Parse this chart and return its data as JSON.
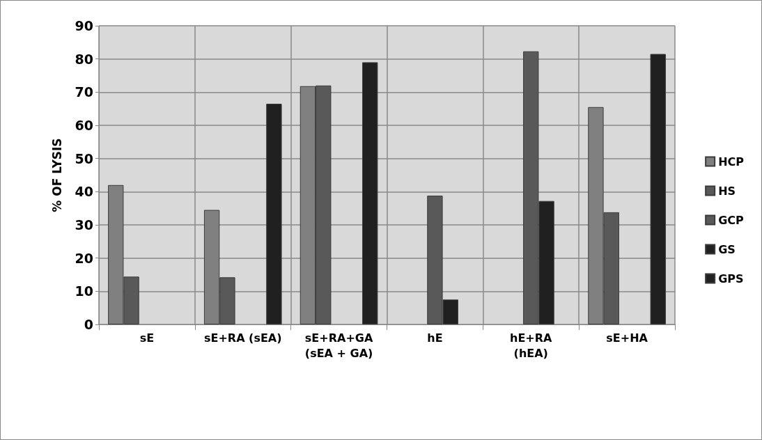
{
  "chart_data": {
    "type": "bar",
    "ylabel": "% OF LYSIS",
    "categories": [
      "sE",
      "sE+RA (sEA)",
      "sE+RA+GA\n(sEA + GA)",
      "hE",
      "hE+RA\n(hEA)",
      "sE+HA"
    ],
    "series": [
      {
        "name": "HCP",
        "color": "#808080",
        "values": [
          42,
          34.5,
          71.8,
          null,
          null,
          65.5
        ]
      },
      {
        "name": "HS",
        "color": "#595959",
        "values": [
          14.4,
          14.2,
          72,
          null,
          null,
          33.8
        ]
      },
      {
        "name": "GCP",
        "color": "#595959",
        "values": [
          null,
          null,
          null,
          38.8,
          82.3,
          null
        ]
      },
      {
        "name": "GS",
        "color": "#202020",
        "values": [
          null,
          null,
          null,
          7.5,
          37.2,
          null
        ]
      },
      {
        "name": "GPS",
        "color": "#202020",
        "values": [
          null,
          66.5,
          79,
          null,
          null,
          81.5
        ]
      }
    ],
    "ylim": [
      0,
      90
    ],
    "yticks": [
      0,
      10,
      20,
      30,
      40,
      50,
      60,
      70,
      80,
      90
    ],
    "grid": true,
    "legend": "right"
  }
}
